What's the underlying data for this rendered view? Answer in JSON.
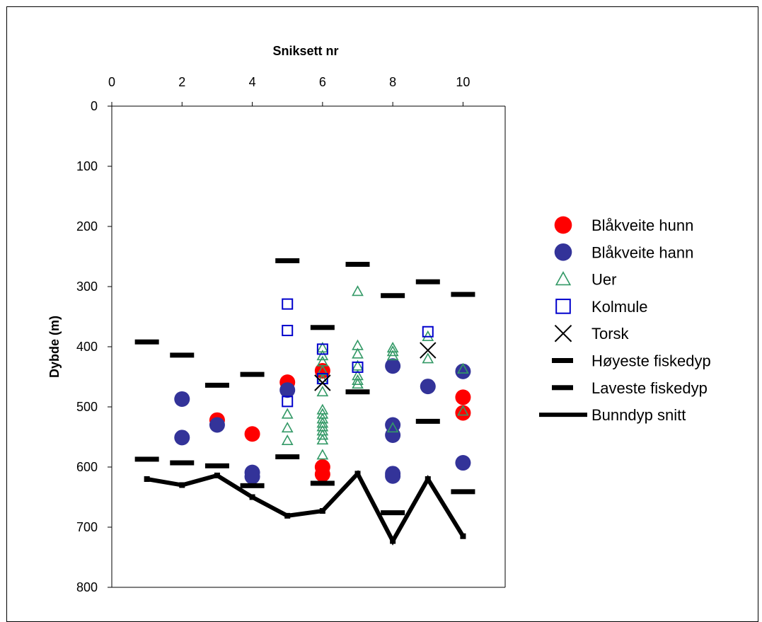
{
  "chart_data": {
    "type": "scatter",
    "xlabel": "Sniksett nr",
    "ylabel": "Dybde (m)",
    "xlim": [
      0,
      11.2
    ],
    "ylim": [
      0,
      800
    ],
    "x_ticks": [
      0,
      2,
      4,
      6,
      8,
      10
    ],
    "y_ticks": [
      0,
      100,
      200,
      300,
      400,
      500,
      600,
      700,
      800
    ],
    "x_axis_position": "top",
    "y_axis_reversed": true,
    "grid": false,
    "legend_position": "right",
    "series": [
      {
        "name": "Blåkveite hunn",
        "marker": "circle",
        "color": "#ff0000",
        "points": [
          [
            3,
            522
          ],
          [
            4,
            545
          ],
          [
            5,
            459
          ],
          [
            6,
            440
          ],
          [
            6,
            600
          ],
          [
            6,
            612
          ],
          [
            10,
            484
          ],
          [
            10,
            510
          ]
        ]
      },
      {
        "name": "Blåkveite hann",
        "marker": "circle",
        "color": "#333399",
        "points": [
          [
            2,
            487
          ],
          [
            2,
            551
          ],
          [
            3,
            530
          ],
          [
            4,
            609
          ],
          [
            4,
            616
          ],
          [
            5,
            472
          ],
          [
            8,
            432
          ],
          [
            8,
            530
          ],
          [
            8,
            547
          ],
          [
            8,
            611
          ],
          [
            8,
            615
          ],
          [
            9,
            466
          ],
          [
            10,
            441
          ],
          [
            10,
            593
          ]
        ]
      },
      {
        "name": "Uer",
        "marker": "triangle-open",
        "color": "#339966",
        "points": [
          [
            5,
            512
          ],
          [
            5,
            535
          ],
          [
            5,
            556
          ],
          [
            6,
            402
          ],
          [
            6,
            415
          ],
          [
            6,
            425
          ],
          [
            6,
            440
          ],
          [
            6,
            455
          ],
          [
            6,
            475
          ],
          [
            6,
            505
          ],
          [
            6,
            512
          ],
          [
            6,
            520
          ],
          [
            6,
            527
          ],
          [
            6,
            533
          ],
          [
            6,
            540
          ],
          [
            6,
            547
          ],
          [
            6,
            555
          ],
          [
            6,
            580
          ],
          [
            7,
            308
          ],
          [
            7,
            398
          ],
          [
            7,
            412
          ],
          [
            7,
            432
          ],
          [
            7,
            448
          ],
          [
            7,
            456
          ],
          [
            7,
            462
          ],
          [
            8,
            402
          ],
          [
            8,
            408
          ],
          [
            8,
            415
          ],
          [
            8,
            535
          ],
          [
            9,
            383
          ],
          [
            9,
            420
          ],
          [
            10,
            437
          ],
          [
            10,
            507
          ]
        ]
      },
      {
        "name": "Kolmule",
        "marker": "square-open",
        "color": "#0000cc",
        "points": [
          [
            5,
            329
          ],
          [
            5,
            373
          ],
          [
            5,
            491
          ],
          [
            6,
            404
          ],
          [
            6,
            453
          ],
          [
            7,
            434
          ],
          [
            9,
            375
          ]
        ]
      },
      {
        "name": "Torsk",
        "marker": "x",
        "color": "#000000",
        "points": [
          [
            6,
            460
          ],
          [
            9,
            406
          ]
        ]
      },
      {
        "name": "Høyeste fiskedyp",
        "marker": "dash",
        "color": "#000000",
        "points": [
          [
            1,
            392
          ],
          [
            2,
            414
          ],
          [
            3,
            464
          ],
          [
            4,
            446
          ],
          [
            5,
            257
          ],
          [
            6,
            368
          ],
          [
            7,
            263
          ],
          [
            8,
            315
          ],
          [
            9,
            292
          ],
          [
            10,
            313
          ]
        ]
      },
      {
        "name": "Laveste fiskedyp",
        "marker": "dash",
        "color": "#000000",
        "points": [
          [
            1,
            587
          ],
          [
            2,
            593
          ],
          [
            3,
            598
          ],
          [
            4,
            631
          ],
          [
            5,
            583
          ],
          [
            6,
            627
          ],
          [
            7,
            475
          ],
          [
            8,
            676
          ],
          [
            9,
            524
          ],
          [
            10,
            641
          ]
        ]
      },
      {
        "name": "Bunndyp snitt",
        "marker": "line",
        "color": "#000000",
        "points": [
          [
            1,
            620
          ],
          [
            2,
            630
          ],
          [
            3,
            614
          ],
          [
            4,
            650
          ],
          [
            5,
            681
          ],
          [
            6,
            673
          ],
          [
            7,
            611
          ],
          [
            8,
            723
          ],
          [
            9,
            620
          ],
          [
            10,
            715
          ]
        ]
      }
    ]
  }
}
